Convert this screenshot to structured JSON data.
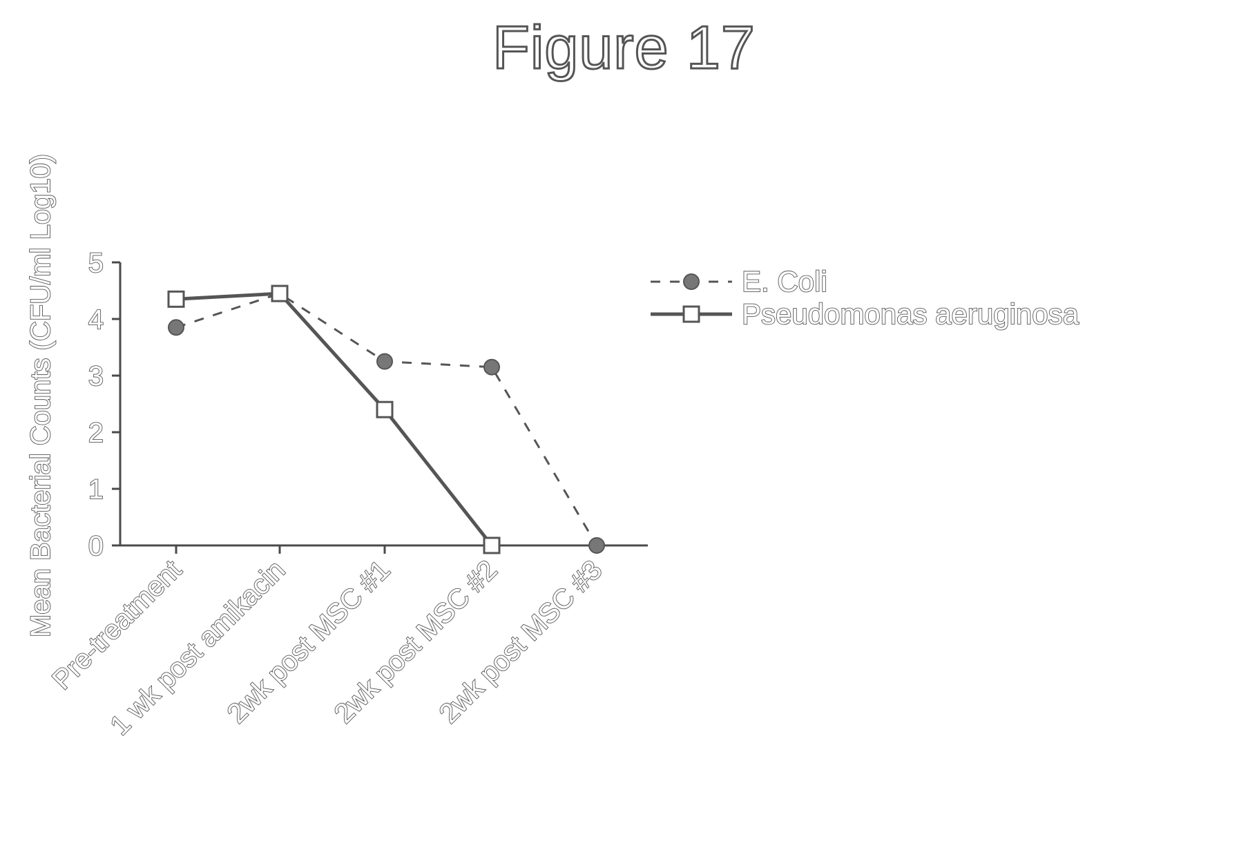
{
  "figure_title": "Figure 17",
  "chart_data": {
    "type": "line",
    "title": "",
    "xlabel": "",
    "ylabel": "Mean Bacterial Counts (CFU/ml Log10)",
    "categories": [
      "Pre-treatment",
      "1 wk post amikacin",
      "2wk post MSC #1",
      "2wk post MSC #2",
      "2wk post MSC #3"
    ],
    "ylim": [
      0,
      5
    ],
    "yticks": [
      "0",
      "1",
      "2",
      "3",
      "4",
      "5"
    ],
    "grid": false,
    "legend_position": "right",
    "series": [
      {
        "name": "E. Coli",
        "values": [
          3.85,
          4.45,
          3.25,
          3.15,
          0
        ],
        "line_style": "dashed",
        "marker": "filled-circle",
        "color": "#555555"
      },
      {
        "name": "Pseudomonas aeruginosa",
        "values": [
          4.35,
          4.45,
          2.4,
          0,
          null
        ],
        "line_style": "solid",
        "marker": "open-square",
        "color": "#555555"
      }
    ]
  }
}
